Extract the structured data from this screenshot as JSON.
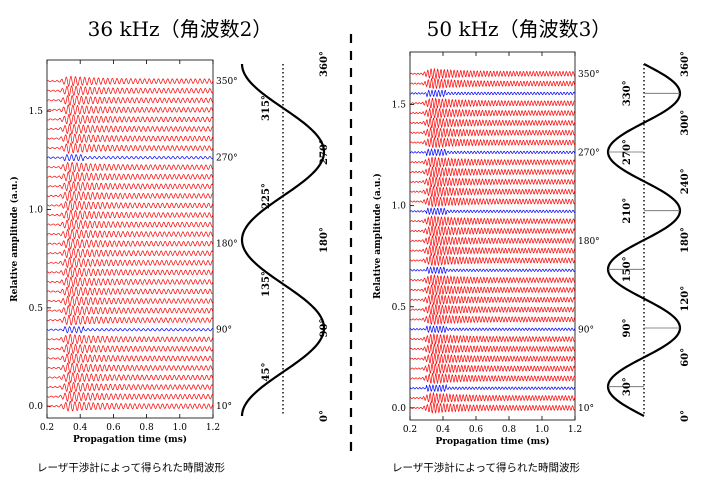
{
  "chart_data": [
    {
      "type": "line",
      "title": "36 kHz（角波数2）",
      "caption": "レーザ干渉計によって得られた時間波形",
      "xlabel": "Propagation time (ms)",
      "ylabel": "Relative amplitude (a.u.)",
      "xlim": [
        0.2,
        1.2
      ],
      "ylim": [
        -0.06,
        1.76
      ],
      "xticks": [
        0.2,
        0.4,
        0.6,
        0.8,
        1.0,
        1.2
      ],
      "xtick_labels": [
        "0.2",
        "0.4",
        "0.6",
        "0.8",
        "1.0",
        "1.2"
      ],
      "yticks": [
        0.0,
        0.5,
        1.0,
        1.5
      ],
      "ytick_labels": [
        "0.0",
        "0.5",
        "1.0",
        "1.5"
      ],
      "traces": 35,
      "trace_spacing": 0.0486,
      "angle_step_deg": 10,
      "series_colors": {
        "normal": "#ff0000",
        "node": "#0000ff"
      },
      "node_angles_deg": [
        90,
        180,
        270
      ],
      "right_angle_labels": [
        "10°",
        "90°",
        "180°",
        "270°",
        "350°"
      ],
      "mode_shape": {
        "angular_order": 2,
        "phase_deg": 45,
        "angle_ticks_deg": [
          45,
          135,
          225,
          315
        ],
        "tick_labels": [
          "45°",
          "135°",
          "225°",
          "315°"
        ],
        "axis_labels": [
          "0°",
          "90°",
          "180°",
          "270°",
          "360°"
        ]
      }
    },
    {
      "type": "line",
      "title": "50 kHz（角波数3）",
      "caption": "レーザ干渉計によって得られた時間波形",
      "xlabel": "Propagation time (ms)",
      "ylabel": "Relative amplitude (a.u.)",
      "xlim": [
        0.2,
        1.2
      ],
      "ylim": [
        -0.06,
        1.76
      ],
      "xticks": [
        0.2,
        0.4,
        0.6,
        0.8,
        1.0,
        1.2
      ],
      "xtick_labels": [
        "0.2",
        "0.4",
        "0.6",
        "0.8",
        "1.0",
        "1.2"
      ],
      "yticks": [
        0.0,
        0.5,
        1.0,
        1.5
      ],
      "ytick_labels": [
        "0.0",
        "0.5",
        "1.0",
        "1.5"
      ],
      "traces": 35,
      "trace_spacing": 0.0486,
      "angle_step_deg": 10,
      "series_colors": {
        "normal": "#ff0000",
        "node": "#0000ff"
      },
      "node_angles_deg": [
        30,
        90,
        150,
        210,
        270,
        330
      ],
      "right_angle_labels": [
        "10°",
        "90°",
        "180°",
        "270°",
        "350°"
      ],
      "mode_shape": {
        "angular_order": 3,
        "phase_deg": 0,
        "angle_ticks_deg": [
          30,
          90,
          150,
          210,
          270,
          330
        ],
        "tick_labels": [
          "30°",
          "90°",
          "150°",
          "210°",
          "270°",
          "330°"
        ],
        "axis_labels": [
          "0°",
          "60°",
          "120°",
          "180°",
          "240°",
          "300°",
          "360°"
        ]
      }
    }
  ]
}
